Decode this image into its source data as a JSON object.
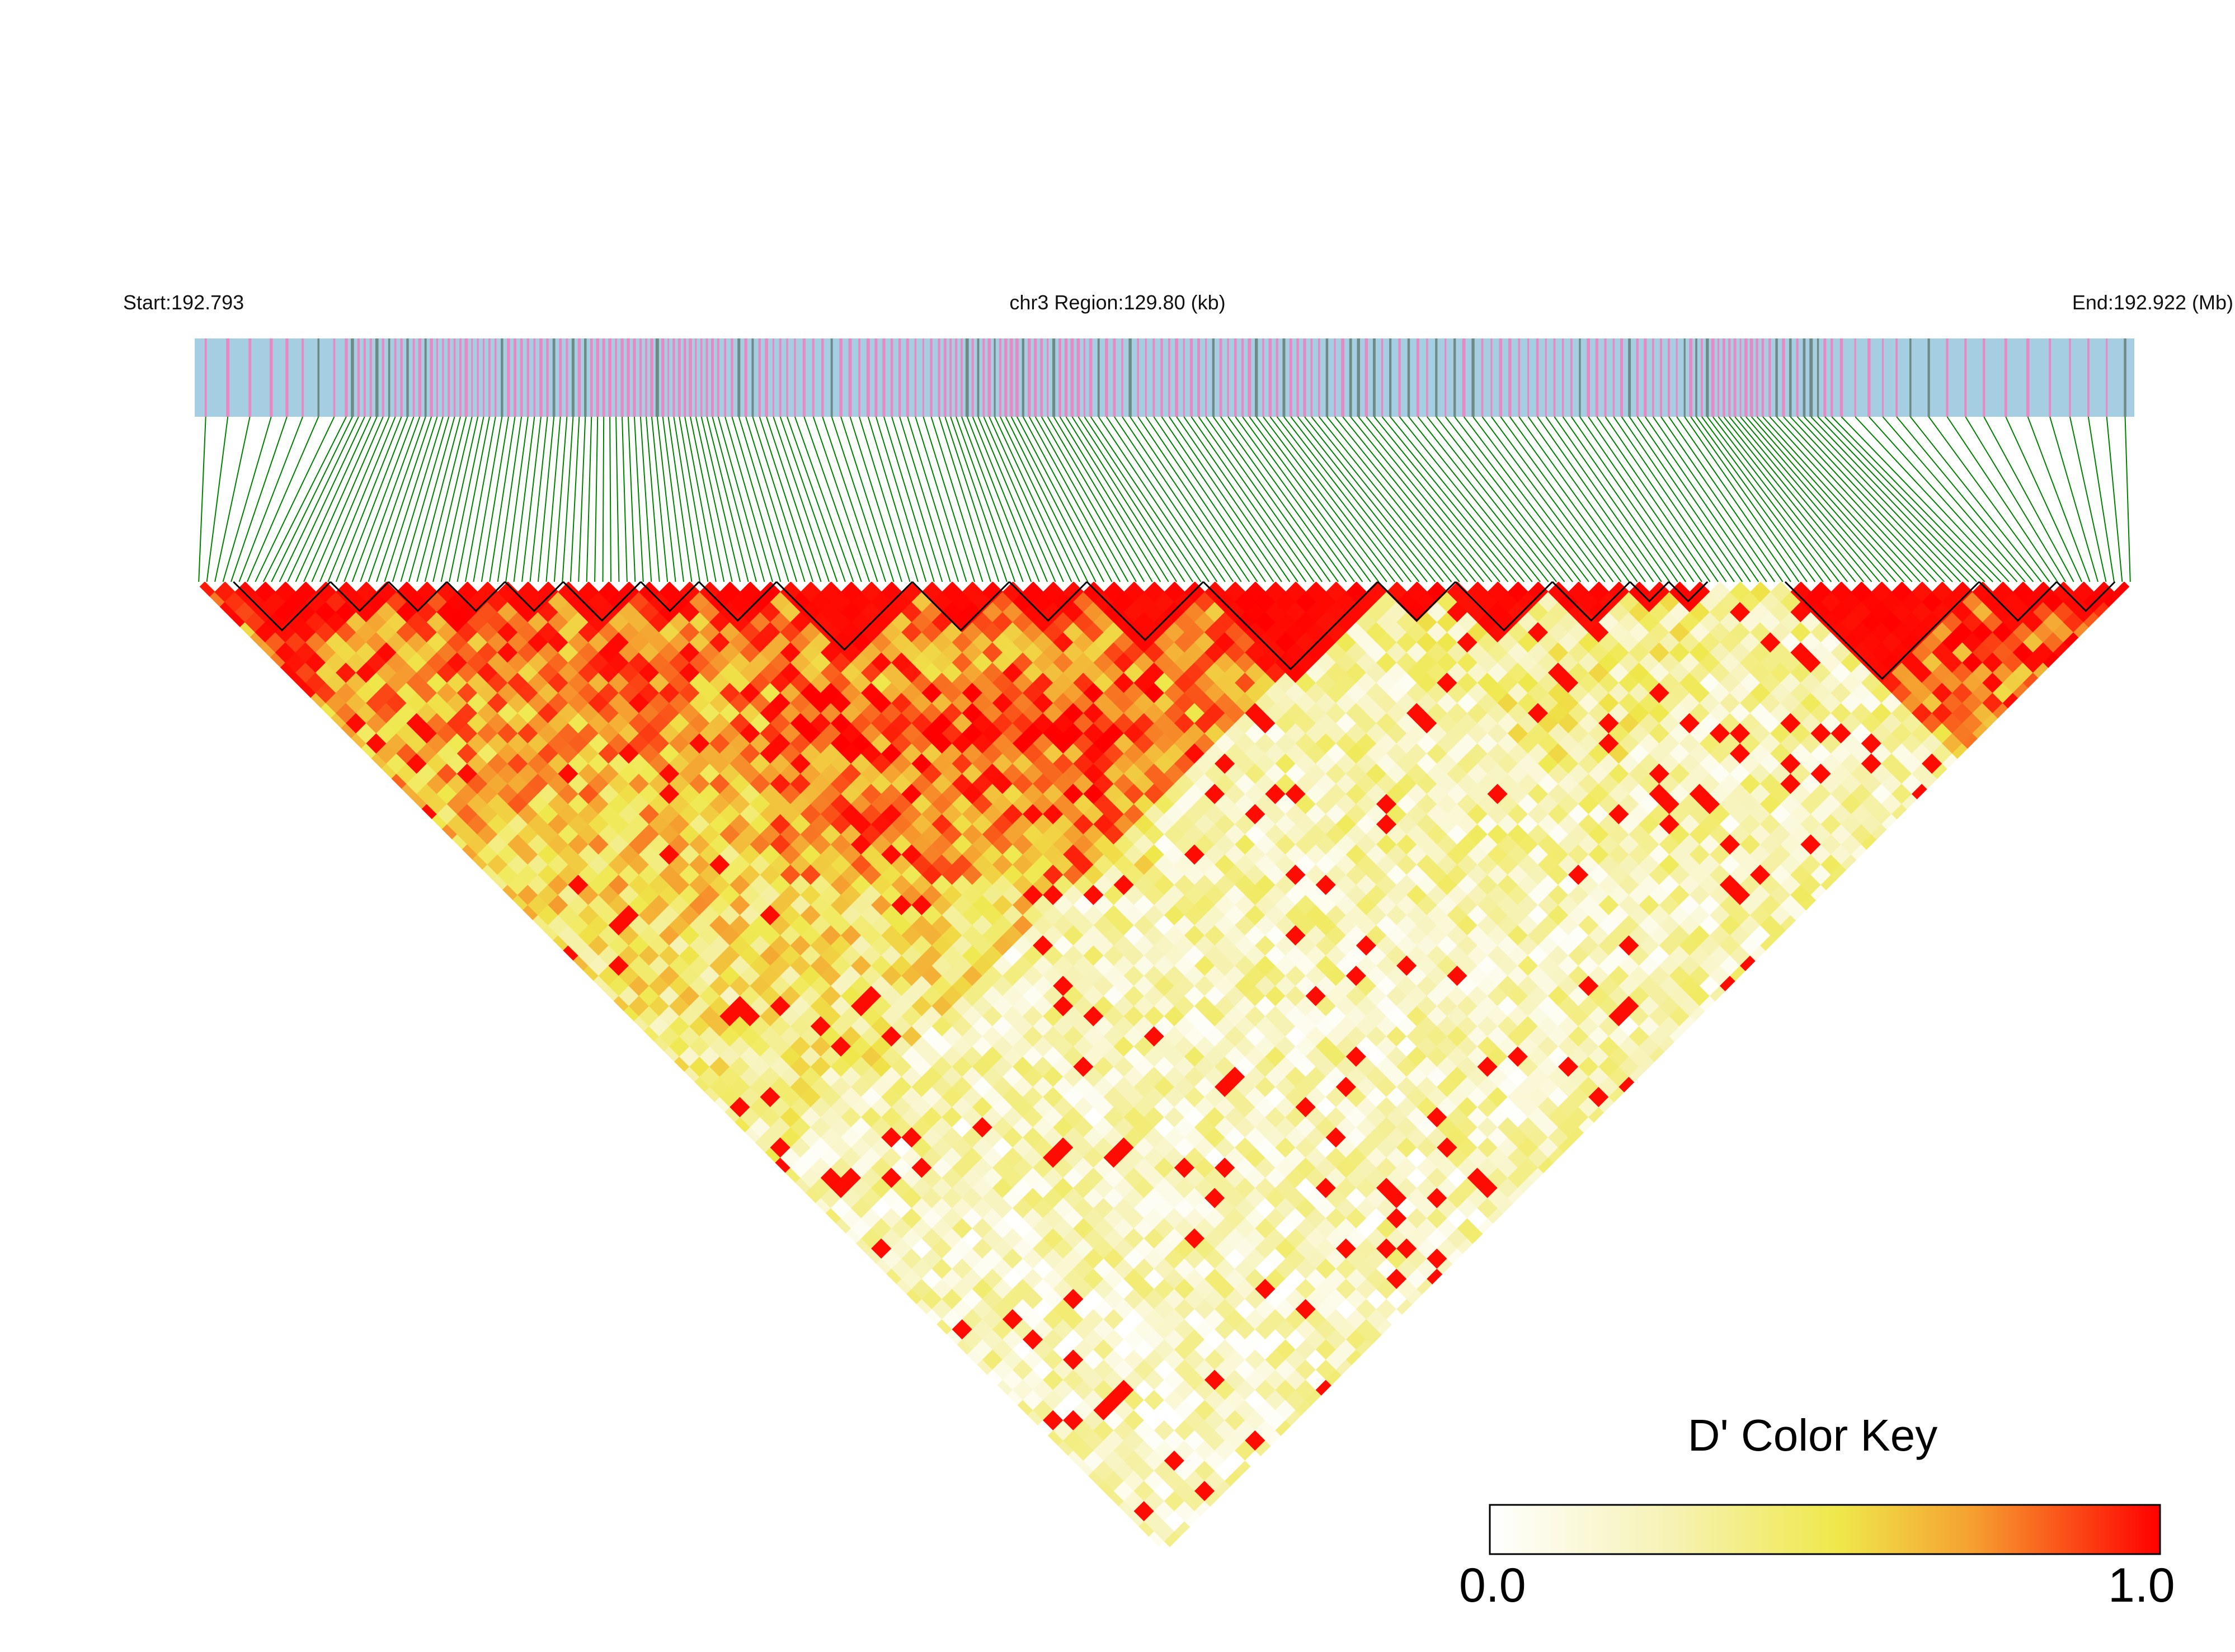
{
  "header": {
    "start_label": "Start:192.793",
    "region_label": "chr3 Region:129.80 (kb)",
    "end_label": "End:192.922 (Mb)"
  },
  "colors": {
    "track_background": "#a6cee3",
    "snp_tick_pink": "#e78ac3",
    "snp_tick_grey": "#6f8a85",
    "connector_green": "#008000",
    "block_outline": "#000000",
    "gradient_low": "#ffffff",
    "gradient_mid": "#efe84b",
    "gradient_high": "#ff0000"
  },
  "chart_data": {
    "type": "heatmap",
    "subtype": "linkage-disequilibrium-triangle",
    "metric": "D'",
    "chromosome": "chr3",
    "region_start_mb": 192.793,
    "region_end_mb": 192.922,
    "region_length_kb": 129.8,
    "color_scale": {
      "title": "D' Color Key",
      "min": 0.0,
      "max": 1.0,
      "min_label": "0.0",
      "max_label": "1.0",
      "stops": [
        "#ffffff",
        "#f6f2b4",
        "#efe84b",
        "#f5a030",
        "#ff0000"
      ]
    },
    "ld_blocks_fraction_of_region": [
      [
        0.02,
        0.07
      ],
      [
        0.07,
        0.1
      ],
      [
        0.1,
        0.13
      ],
      [
        0.13,
        0.16
      ],
      [
        0.16,
        0.19
      ],
      [
        0.19,
        0.23
      ],
      [
        0.23,
        0.26
      ],
      [
        0.26,
        0.3
      ],
      [
        0.3,
        0.37
      ],
      [
        0.37,
        0.42
      ],
      [
        0.42,
        0.46
      ],
      [
        0.46,
        0.52
      ],
      [
        0.52,
        0.61
      ],
      [
        0.61,
        0.65
      ],
      [
        0.65,
        0.7
      ],
      [
        0.7,
        0.74
      ],
      [
        0.74,
        0.76
      ],
      [
        0.76,
        0.78
      ],
      [
        0.82,
        0.92
      ],
      [
        0.92,
        0.96
      ],
      [
        0.96,
        0.99
      ]
    ],
    "snp_density_profile": [
      0.25,
      0.35,
      0.9,
      0.95,
      0.85,
      0.9,
      1.0,
      0.8,
      0.6,
      0.7,
      1.0,
      0.9,
      0.7,
      0.75,
      0.8,
      0.7,
      0.6,
      0.6,
      0.65,
      0.7,
      1.0,
      0.8,
      0.4,
      0.3,
      0.25,
      0.3
    ]
  }
}
